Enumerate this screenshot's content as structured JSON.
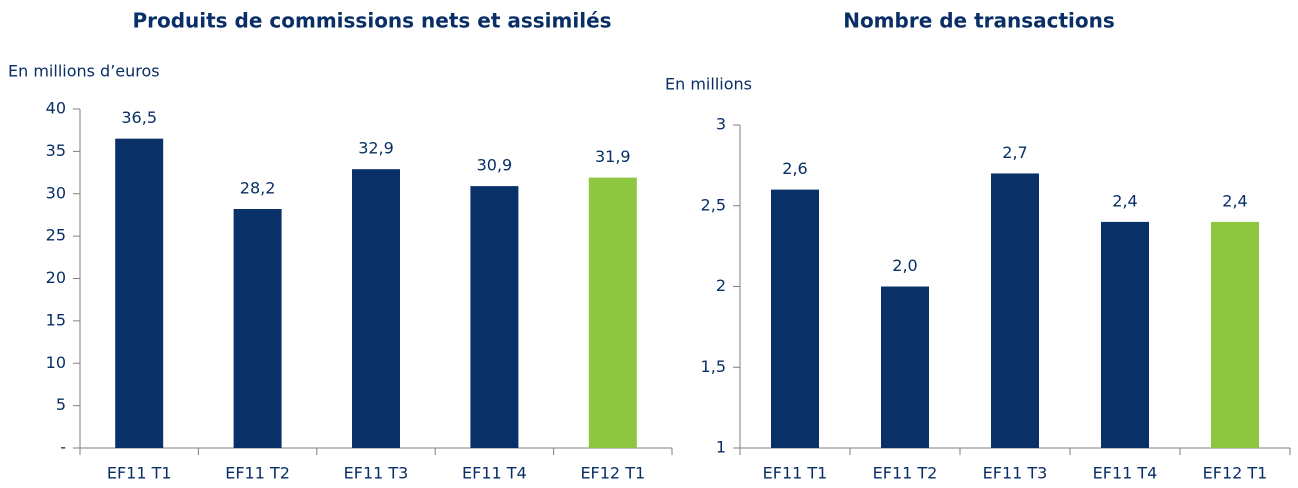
{
  "chart_data": [
    {
      "type": "bar",
      "title": "Produits de commissions nets et assimilés",
      "ylabel": "En millions d’euros",
      "categories": [
        "EF11 T1",
        "EF11 T2",
        "EF11 T3",
        "EF11 T4",
        "EF12 T1"
      ],
      "values": [
        36.5,
        28.2,
        32.9,
        30.9,
        31.9
      ],
      "value_labels": [
        "36,5",
        "28,2",
        "32,9",
        "30,9",
        "31,9"
      ],
      "colors": [
        "#0a3068",
        "#0a3068",
        "#0a3068",
        "#0a3068",
        "#8dc63f"
      ],
      "ylim": [
        0,
        40
      ],
      "yticks": [
        {
          "value": 0,
          "label": "-"
        },
        5,
        10,
        15,
        20,
        25,
        30,
        35,
        40
      ]
    },
    {
      "type": "bar",
      "title": "Nombre de transactions",
      "ylabel": "En millions",
      "categories": [
        "EF11 T1",
        "EF11 T2",
        "EF11 T3",
        "EF11 T4",
        "EF12 T1"
      ],
      "values": [
        2.6,
        2.0,
        2.7,
        2.4,
        2.4
      ],
      "value_labels": [
        "2,6",
        "2,0",
        "2,7",
        "2,4",
        "2,4"
      ],
      "colors": [
        "#0a3068",
        "#0a3068",
        "#0a3068",
        "#0a3068",
        "#8dc63f"
      ],
      "ylim": [
        1,
        3
      ],
      "yticks": [
        1,
        {
          "value": 1.5,
          "label": "1,5"
        },
        2,
        {
          "value": 2.5,
          "label": "2,5"
        },
        3
      ]
    }
  ]
}
